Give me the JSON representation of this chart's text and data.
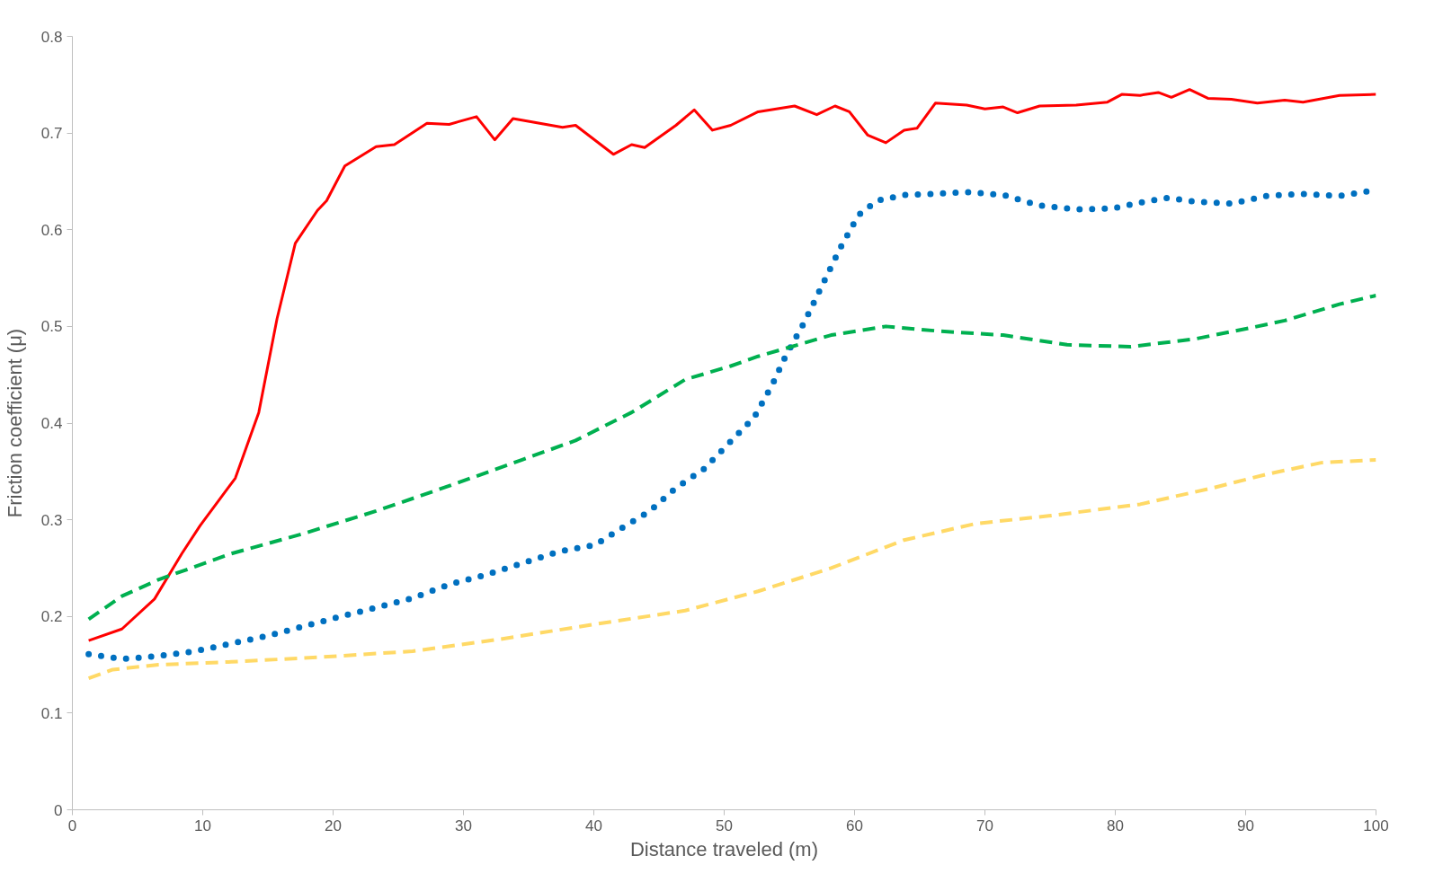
{
  "chart_data": {
    "type": "line",
    "xlabel": "Distance traveled (m)",
    "ylabel": "Friction coefficient (μ)",
    "xlim": [
      0,
      100
    ],
    "xticks": [
      0,
      10,
      20,
      30,
      40,
      50,
      60,
      70,
      80,
      90,
      100
    ],
    "ylim": [
      0,
      0.8
    ],
    "yticks": [
      0,
      0.1,
      0.2,
      0.3,
      0.4,
      0.5,
      0.6,
      0.7,
      0.8
    ],
    "grid": false,
    "marker": "none",
    "series": [
      {
        "color": "#ff0000",
        "line_style": "solid",
        "x": [
          1.25,
          3.8,
          6.3,
          8.4,
          9.8,
          12.5,
          14.3,
          15.7,
          17.1,
          18.8,
          19.5,
          20.9,
          23.3,
          24.7,
          27.2,
          28.9,
          31,
          32.4,
          33.8,
          37.6,
          38.6,
          41.5,
          42.9,
          43.9,
          46.3,
          47.7,
          49.1,
          50.5,
          52.6,
          55.4,
          57.1,
          58.5,
          59.6,
          61,
          62.4,
          63.8,
          64.8,
          66.2,
          68.6,
          70,
          71.4,
          72.5,
          74.2,
          77,
          79.4,
          80.5,
          81.9,
          83.3,
          84.3,
          85.7,
          87.1,
          88.9,
          90.9,
          93,
          94.4,
          97.2,
          100
        ],
        "values": [
          0.175,
          0.187,
          0.218,
          0.265,
          0.294,
          0.343,
          0.411,
          0.508,
          0.586,
          0.62,
          0.63,
          0.666,
          0.686,
          0.688,
          0.71,
          0.709,
          0.717,
          0.693,
          0.715,
          0.706,
          0.708,
          0.678,
          0.688,
          0.685,
          0.708,
          0.724,
          0.703,
          0.708,
          0.722,
          0.728,
          0.719,
          0.728,
          0.722,
          0.698,
          0.69,
          0.703,
          0.705,
          0.731,
          0.729,
          0.725,
          0.727,
          0.721,
          0.728,
          0.729,
          0.732,
          0.74,
          0.739,
          0.742,
          0.737,
          0.745,
          0.736,
          0.735,
          0.731,
          0.734,
          0.732,
          0.739,
          0.74
        ]
      },
      {
        "color": "#0070c0",
        "line_style": "dotted",
        "x": [
          1.25,
          3.8,
          6.6,
          9.4,
          12.2,
          15,
          17.8,
          20.6,
          23.3,
          26.1,
          28.9,
          31.7,
          34.5,
          37.3,
          40.1,
          41.5,
          44.3,
          46.3,
          48.4,
          50.5,
          52.3,
          53.7,
          54.7,
          56.1,
          57.5,
          58.9,
          60.3,
          61.7,
          63.8,
          65.9,
          68.6,
          71.4,
          74.2,
          77,
          79.8,
          81.9,
          84,
          86.1,
          88.9,
          91.6,
          94.4,
          97.2,
          100
        ],
        "values": [
          0.161,
          0.156,
          0.159,
          0.164,
          0.172,
          0.18,
          0.19,
          0.2,
          0.209,
          0.219,
          0.233,
          0.243,
          0.255,
          0.267,
          0.274,
          0.286,
          0.309,
          0.333,
          0.352,
          0.381,
          0.406,
          0.44,
          0.469,
          0.503,
          0.542,
          0.581,
          0.615,
          0.63,
          0.636,
          0.637,
          0.639,
          0.636,
          0.625,
          0.621,
          0.622,
          0.628,
          0.633,
          0.629,
          0.627,
          0.635,
          0.637,
          0.635,
          0.641
        ]
      },
      {
        "color": "#00b050",
        "line_style": "dashed",
        "x": [
          1.25,
          3.8,
          6.6,
          12.2,
          17.8,
          23.3,
          28.9,
          34.5,
          38.6,
          42.9,
          47,
          50.5,
          52.6,
          58.2,
          62.4,
          66.6,
          71.4,
          76.3,
          81.2,
          86.1,
          90.2,
          93,
          97.2,
          100
        ],
        "values": [
          0.197,
          0.221,
          0.238,
          0.265,
          0.286,
          0.309,
          0.335,
          0.362,
          0.382,
          0.411,
          0.445,
          0.459,
          0.469,
          0.491,
          0.5,
          0.495,
          0.491,
          0.481,
          0.479,
          0.487,
          0.498,
          0.506,
          0.523,
          0.532
        ]
      },
      {
        "color": "#ffd966",
        "line_style": "dashed",
        "x": [
          1.25,
          3.1,
          6.6,
          12.2,
          19.2,
          26.1,
          33.1,
          40.1,
          47,
          52.6,
          58.2,
          63.8,
          69.3,
          74.9,
          81.9,
          87.5,
          91.6,
          95.8,
          100
        ],
        "values": [
          0.136,
          0.145,
          0.15,
          0.153,
          0.158,
          0.164,
          0.177,
          0.192,
          0.206,
          0.226,
          0.25,
          0.279,
          0.296,
          0.304,
          0.316,
          0.333,
          0.347,
          0.359,
          0.362
        ]
      }
    ]
  }
}
